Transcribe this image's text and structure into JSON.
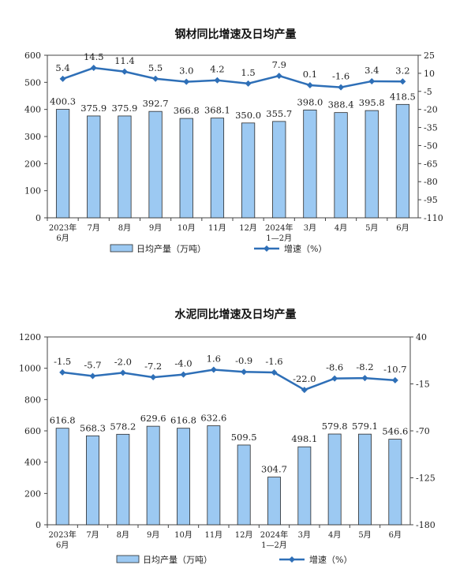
{
  "chart_data": [
    {
      "type": "bar",
      "title": "钢材同比增速及日均产量",
      "categories": [
        "2023年\n6月",
        "7月",
        "8月",
        "9月",
        "10月",
        "11月",
        "12月",
        "2024年\n1—2月",
        "3月",
        "4月",
        "5月",
        "6月"
      ],
      "series": [
        {
          "name": "日均产量（万吨）",
          "type": "bar",
          "axis": "left",
          "values": [
            400.3,
            375.9,
            375.9,
            392.7,
            366.8,
            368.1,
            350.0,
            355.7,
            398.0,
            388.4,
            395.8,
            418.5
          ],
          "labels": [
            "400.3",
            "375.9",
            "375.9",
            "392.7",
            "366.8",
            "368.1",
            "350.0",
            "355.7",
            "398.0",
            "388.4",
            "395.8",
            "418.5"
          ]
        },
        {
          "name": "增速（%）",
          "type": "line",
          "axis": "right",
          "values": [
            5.4,
            14.5,
            11.4,
            5.5,
            3.0,
            4.2,
            1.5,
            7.9,
            0.1,
            -1.6,
            3.4,
            3.2
          ],
          "labels": [
            "5.4",
            "14.5",
            "11.4",
            "5.5",
            "3.0",
            "4.2",
            "1.5",
            "7.9",
            "0.1",
            "-1.6",
            "3.4",
            "3.2"
          ]
        }
      ],
      "ylim_left": [
        0,
        600
      ],
      "yticks_left": [
        0,
        100,
        200,
        300,
        400,
        500,
        600
      ],
      "ylim_right": [
        -110,
        25
      ],
      "yticks_right": [
        -110,
        -95,
        -80,
        -65,
        -50,
        -35,
        -20,
        -5,
        10,
        25
      ],
      "bar_color": "#9cc9f2",
      "bar_border": "#2b2b2b",
      "line_color": "#2e6fb7",
      "legend_position": "bottom"
    },
    {
      "type": "bar",
      "title": "水泥同比增速及日均产量",
      "categories": [
        "2023年\n6月",
        "7月",
        "8月",
        "9月",
        "10月",
        "11月",
        "12月",
        "2024年\n1—2月",
        "3月",
        "4月",
        "5月",
        "6月"
      ],
      "series": [
        {
          "name": "日均产量（万吨）",
          "type": "bar",
          "axis": "left",
          "values": [
            616.8,
            568.3,
            578.2,
            629.6,
            616.8,
            632.6,
            509.5,
            304.7,
            498.1,
            579.8,
            579.1,
            546.6
          ],
          "labels": [
            "616.8",
            "568.3",
            "578.2",
            "629.6",
            "616.8",
            "632.6",
            "509.5",
            "304.7",
            "498.1",
            "579.8",
            "579.1",
            "546.6"
          ]
        },
        {
          "name": "增速（%）",
          "type": "line",
          "axis": "right",
          "values": [
            -1.5,
            -5.7,
            -2.0,
            -7.2,
            -4.0,
            1.6,
            -0.9,
            -1.6,
            -22.0,
            -8.6,
            -8.2,
            -10.7
          ],
          "labels": [
            "-1.5",
            "-5.7",
            "-2.0",
            "-7.2",
            "-4.0",
            "1.6",
            "-0.9",
            "-1.6",
            "-22.0",
            "-8.6",
            "-8.2",
            "-10.7"
          ]
        }
      ],
      "ylim_left": [
        0,
        1200
      ],
      "yticks_left": [
        0,
        200,
        400,
        600,
        800,
        1000,
        1200
      ],
      "ylim_right": [
        -180,
        40
      ],
      "yticks_right": [
        -180,
        -125,
        -70,
        -15,
        40
      ],
      "bar_color": "#9cc9f2",
      "bar_border": "#2b2b2b",
      "line_color": "#2e6fb7",
      "legend_position": "bottom"
    }
  ]
}
